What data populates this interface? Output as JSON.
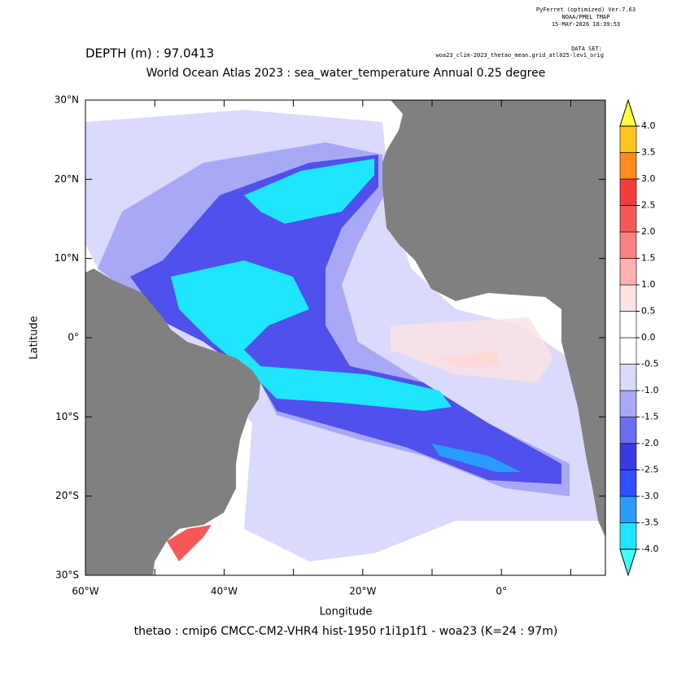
{
  "header": {
    "software": "PyFerret (optimized) Ver.7.63",
    "org": "NOAA/PMEL TMAP",
    "timestamp": "15-MAY-2026 18:39:53",
    "dataset_label": "DATA SET:",
    "dataset": "woa23_clim-2023_thetao_mean.grid_atl025-lev1_orig"
  },
  "depth_label": "DEPTH (m) : 97.0413",
  "title": "World Ocean Atlas 2023 : sea_water_temperature Annual  0.25 degree",
  "caption": "thetao : cmip6 CMCC-CM2-VHR4 hist-1950 r1i1p1f1 - woa23  (K=24 : 97m)",
  "map": {
    "xlabel": "Longitude",
    "ylabel": "Latitude",
    "xlim": [
      -60,
      15
    ],
    "ylim": [
      -30,
      30
    ],
    "xticks": [
      {
        "value": -60,
        "label": "60°W"
      },
      {
        "value": -40,
        "label": "40°W"
      },
      {
        "value": -20,
        "label": "20°W"
      },
      {
        "value": 0,
        "label": "0°"
      }
    ],
    "xminorticks": [
      -50,
      -30,
      -10,
      10
    ],
    "yticks": [
      {
        "value": 30,
        "label": "30°N"
      },
      {
        "value": 20,
        "label": "20°N"
      },
      {
        "value": 10,
        "label": "10°N"
      },
      {
        "value": 0,
        "label": "0°"
      },
      {
        "value": -10,
        "label": "10°S"
      },
      {
        "value": -20,
        "label": "20°S"
      },
      {
        "value": -30,
        "label": "30°S"
      }
    ],
    "colorbar": {
      "levels": [
        {
          "value": -4,
          "label": "-4.0"
        },
        {
          "value": -3.5,
          "label": "-3.5"
        },
        {
          "value": -3,
          "label": "-3.0"
        },
        {
          "value": -2.5,
          "label": "-2.5"
        },
        {
          "value": -2,
          "label": "-2.0"
        },
        {
          "value": -1.5,
          "label": "-1.5"
        },
        {
          "value": -1,
          "label": "-1.0"
        },
        {
          "value": -0.5,
          "label": "-0.5"
        },
        {
          "value": 0,
          "label": "0.0"
        },
        {
          "value": 0.5,
          "label": "0.5"
        },
        {
          "value": 1,
          "label": "1.0"
        },
        {
          "value": 1.5,
          "label": "1.5"
        },
        {
          "value": 2,
          "label": "2.0"
        },
        {
          "value": 2.5,
          "label": "2.5"
        },
        {
          "value": 3,
          "label": "3.0"
        },
        {
          "value": 3.5,
          "label": "3.5"
        },
        {
          "value": 4,
          "label": "4.0"
        }
      ],
      "colors": [
        "#1ee6ff",
        "#2a9cff",
        "#2f4fff",
        "#3a3ae6",
        "#6c6cf2",
        "#a8a8f6",
        "#dadafc",
        "#ffffff",
        "#ffffff",
        "#fde2e2",
        "#fcb2b2",
        "#fa8282",
        "#f55858",
        "#f43c3c",
        "#ff8a1e",
        "#ffc41e"
      ],
      "under_color": "#40ffff",
      "over_color": "#ffff40"
    }
  }
}
